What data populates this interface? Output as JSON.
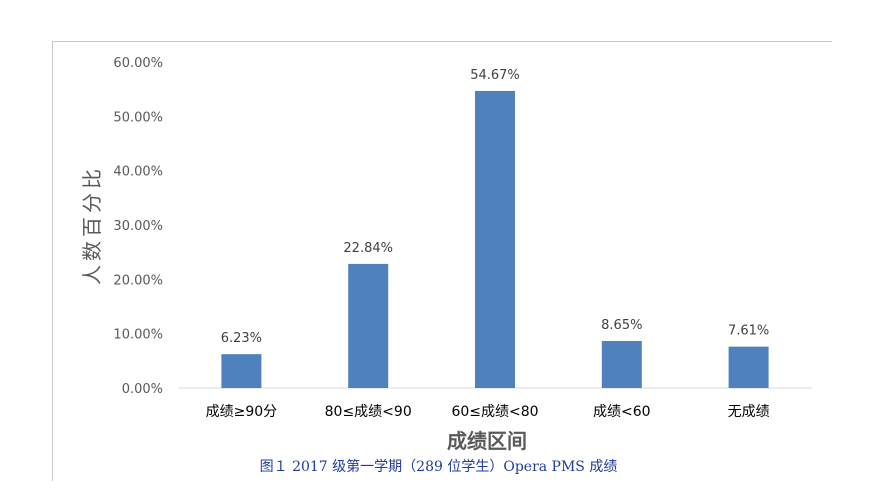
{
  "chart_data": {
    "type": "bar",
    "categories": [
      "成绩≥90分",
      "80≤成绩<90",
      "60≤成绩<80",
      "成绩<60",
      "无成绩"
    ],
    "values": [
      6.23,
      22.84,
      54.67,
      8.65,
      7.61
    ],
    "data_labels": [
      "6.23%",
      "22.84%",
      "54.67%",
      "8.65%",
      "7.61%"
    ],
    "ylim": [
      0,
      60
    ],
    "yticks": [
      "0.00%",
      "10.00%",
      "20.00%",
      "30.00%",
      "40.00%",
      "50.00%",
      "60.00%"
    ],
    "xlabel": "成绩区间",
    "ylabel": "人数百分比",
    "bar_color": "#4f81bd",
    "grid": false
  },
  "caption": "图１  2017 级第一学期（289 位学生）Opera PMS 成绩"
}
